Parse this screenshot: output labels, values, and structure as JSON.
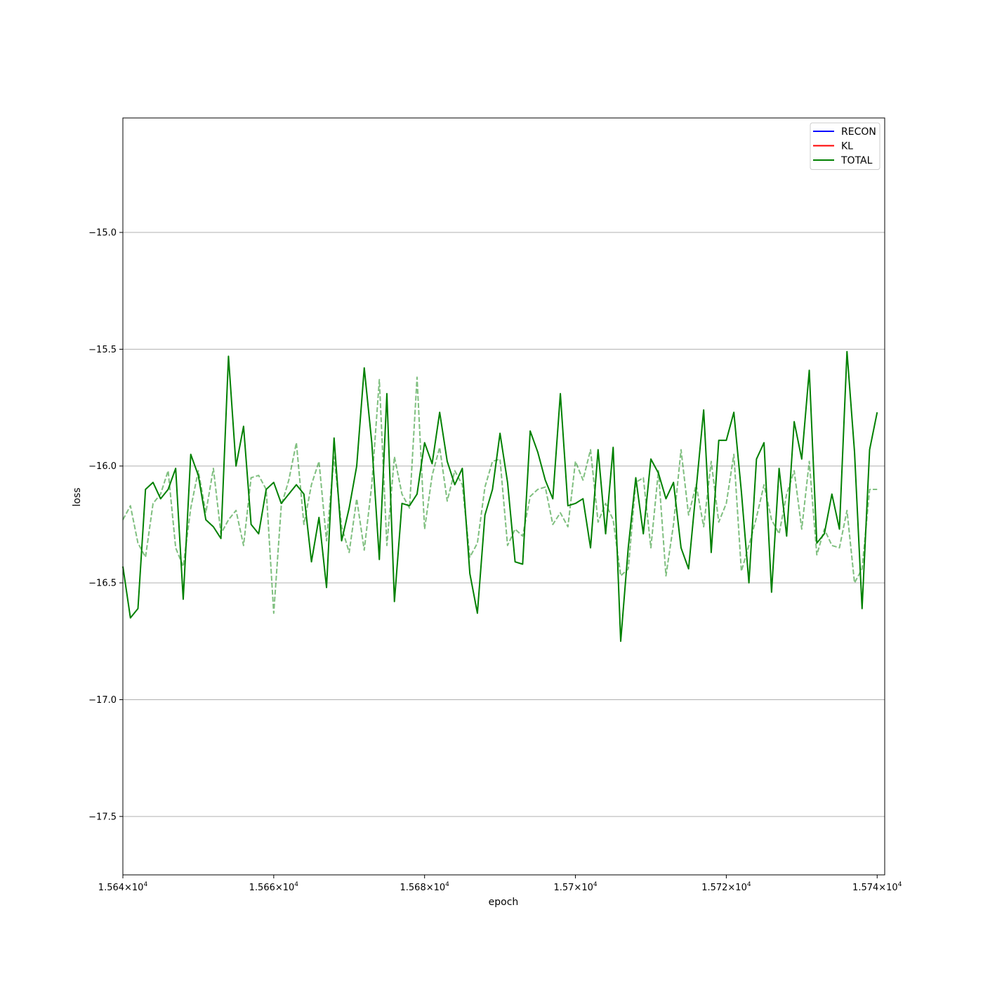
{
  "chart_data": {
    "type": "line",
    "title": "",
    "xlabel": "epoch",
    "ylabel": "loss",
    "xlim": [
      15640,
      15741
    ],
    "ylim": [
      -17.75,
      -14.51
    ],
    "x_ticks": [
      15640,
      15660,
      15680,
      15700,
      15720,
      15740
    ],
    "x_tick_labels": [
      {
        "mantissa": "1.564",
        "exponent": "4"
      },
      {
        "mantissa": "1.566",
        "exponent": "4"
      },
      {
        "mantissa": "1.568",
        "exponent": "4"
      },
      {
        "mantissa": "1.57",
        "exponent": "4"
      },
      {
        "mantissa": "1.572",
        "exponent": "4"
      },
      {
        "mantissa": "1.574",
        "exponent": "4"
      }
    ],
    "y_ticks": [
      -15.0,
      -15.5,
      -16.0,
      -16.5,
      -17.0,
      -17.5
    ],
    "y_tick_labels": [
      "−15.0",
      "−15.5",
      "−16.0",
      "−16.5",
      "−17.0",
      "−17.5"
    ],
    "grid": "horizontal",
    "legend": {
      "placement": "top-right",
      "entries": [
        {
          "label": "RECON",
          "color": "#0000ff"
        },
        {
          "label": "KL",
          "color": "#ff0000"
        },
        {
          "label": "TOTAL",
          "color": "#008000"
        }
      ]
    },
    "x_start": 15640,
    "x_step": 1,
    "series": [
      {
        "name": "TOTAL",
        "color": "#008000",
        "style": "solid",
        "values": [
          -16.43,
          -16.65,
          -16.61,
          -16.1,
          -16.07,
          -16.14,
          -16.1,
          -16.01,
          -16.57,
          -15.95,
          -16.04,
          -16.23,
          -16.26,
          -16.31,
          -15.53,
          -16.0,
          -15.83,
          -16.25,
          -16.29,
          -16.1,
          -16.07,
          -16.16,
          -16.12,
          -16.08,
          -16.12,
          -16.41,
          -16.22,
          -16.52,
          -15.88,
          -16.32,
          -16.18,
          -16.0,
          -15.58,
          -15.9,
          -16.4,
          -15.69,
          -16.58,
          -16.16,
          -16.17,
          -16.12,
          -15.9,
          -15.99,
          -15.77,
          -15.98,
          -16.08,
          -16.01,
          -16.46,
          -16.63,
          -16.21,
          -16.1,
          -15.86,
          -16.07,
          -16.41,
          -16.42,
          -15.85,
          -15.94,
          -16.06,
          -16.14,
          -15.69,
          -16.17,
          -16.16,
          -16.14,
          -16.35,
          -15.93,
          -16.29,
          -15.92,
          -16.75,
          -16.35,
          -16.05,
          -16.29,
          -15.97,
          -16.03,
          -16.14,
          -16.07,
          -16.35,
          -16.44,
          -16.1,
          -15.76,
          -16.37,
          -15.89,
          -15.89,
          -15.77,
          -16.11,
          -16.5,
          -15.97,
          -15.9,
          -16.54,
          -16.01,
          -16.3,
          -15.81,
          -15.97,
          -15.59,
          -16.33,
          -16.29,
          -16.12,
          -16.27,
          -15.51,
          -15.94,
          -16.61,
          -15.93,
          -15.77
        ]
      },
      {
        "name": "",
        "color": "#008000",
        "style": "dashed",
        "opacity": 0.5,
        "values": [
          -16.23,
          -16.17,
          -16.33,
          -16.39,
          -16.16,
          -16.12,
          -16.02,
          -16.35,
          -16.43,
          -16.18,
          -16.02,
          -16.2,
          -16.01,
          -16.29,
          -16.23,
          -16.19,
          -16.34,
          -16.05,
          -16.04,
          -16.1,
          -16.63,
          -16.17,
          -16.06,
          -15.9,
          -16.25,
          -16.08,
          -15.98,
          -16.32,
          -15.96,
          -16.26,
          -16.37,
          -16.14,
          -16.36,
          -16.08,
          -15.63,
          -16.34,
          -15.96,
          -16.12,
          -16.18,
          -15.62,
          -16.27,
          -16.04,
          -15.92,
          -16.15,
          -16.02,
          -16.08,
          -16.39,
          -16.33,
          -16.09,
          -15.98,
          -15.97,
          -16.34,
          -16.27,
          -16.3,
          -16.13,
          -16.1,
          -16.09,
          -16.25,
          -16.2,
          -16.26,
          -15.98,
          -16.06,
          -15.93,
          -16.24,
          -16.16,
          -16.23,
          -16.47,
          -16.44,
          -16.07,
          -16.05,
          -16.35,
          -16.02,
          -16.47,
          -16.25,
          -15.93,
          -16.21,
          -16.08,
          -16.26,
          -15.98,
          -16.24,
          -16.16,
          -15.95,
          -16.45,
          -16.34,
          -16.22,
          -16.08,
          -16.23,
          -16.29,
          -16.12,
          -16.02,
          -16.27,
          -15.98,
          -16.38,
          -16.27,
          -16.34,
          -16.35,
          -16.19,
          -16.5,
          -16.44,
          -16.1,
          -16.1
        ]
      }
    ]
  }
}
